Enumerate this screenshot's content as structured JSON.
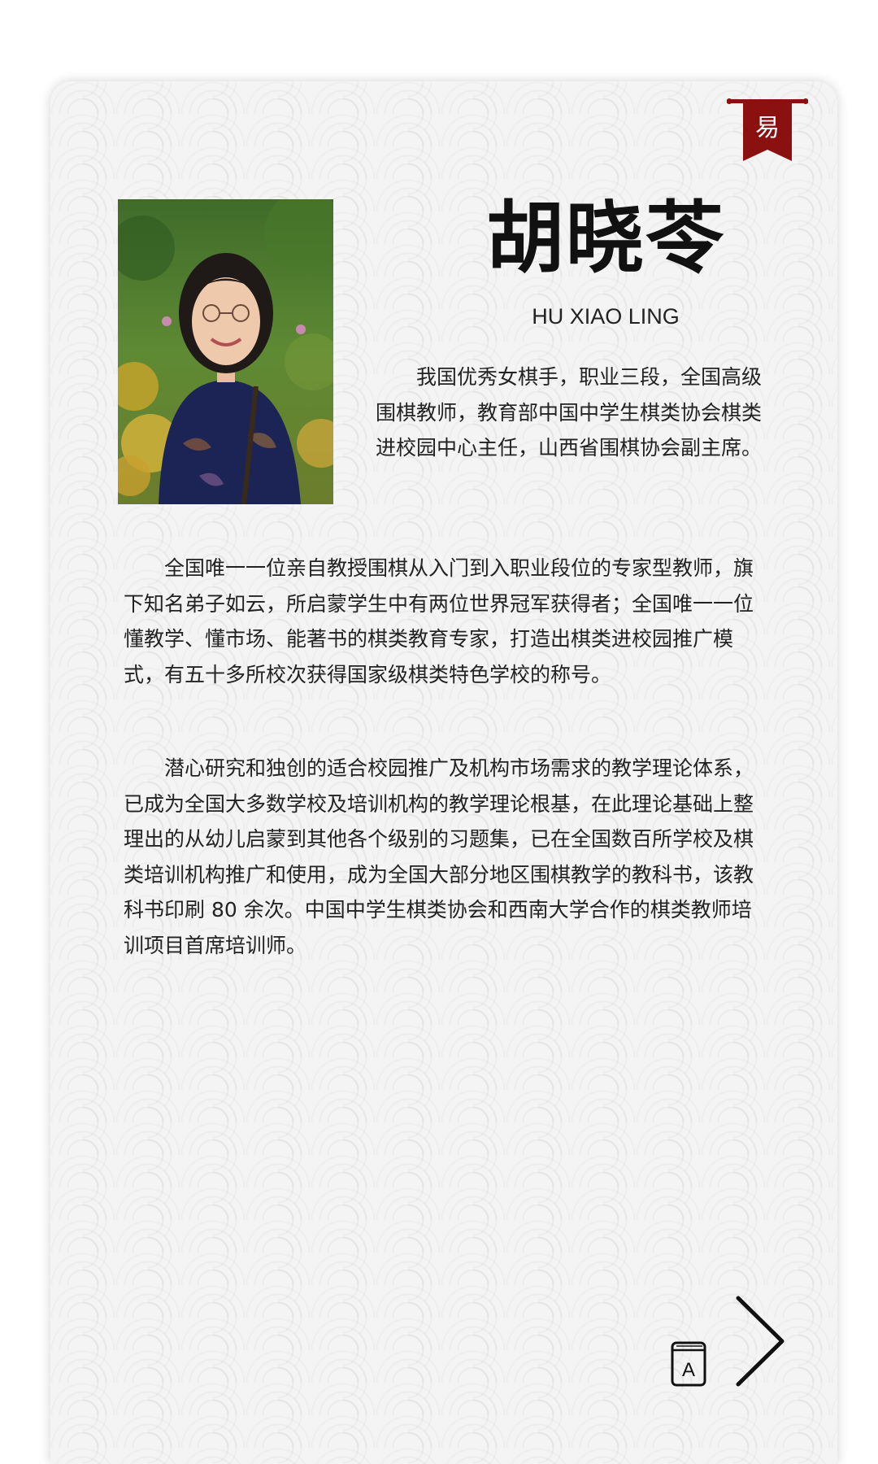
{
  "banner": {
    "glyph": "易",
    "color": "#8b1010"
  },
  "profile": {
    "name_cn": "胡晓苓",
    "name_en": "HU XIAO LING",
    "intro": "我国优秀女棋手，职业三段，全国高级围棋教师，教育部中国中学生棋类协会棋类进校园中心主任，山西省围棋协会副主席。"
  },
  "paragraphs": [
    "全国唯一一位亲自教授围棋从入门到入职业段位的专家型教师，旗下知名弟子如云，所启蒙学生中有两位世界冠军获得者；全国唯一一位懂教学、懂市场、能著书的棋类教育专家，打造出棋类进校园推广模式，有五十多所校次获得国家级棋类特色学校的称号。",
    "潜心研究和独创的适合校园推广及机构市场需求的教学理论体系，已成为全国大多数学校及培训机构的教学理论根基，在此理论基础上整理出的从幼儿启蒙到其他各个级别的习题集，已在全国数百所学校及棋类培训机构推广和使用，成为全国大部分地区围棋教学的教科书，该教科书印刷 80 余次。中国中学生棋类协会和西南大学合作的棋类教师培训项目首席培训师。"
  ],
  "controls": {
    "book_icon_letter": "A"
  },
  "icons": {
    "banner": "banner-flag-icon",
    "book": "book-icon",
    "next": "chevron-right-icon"
  }
}
